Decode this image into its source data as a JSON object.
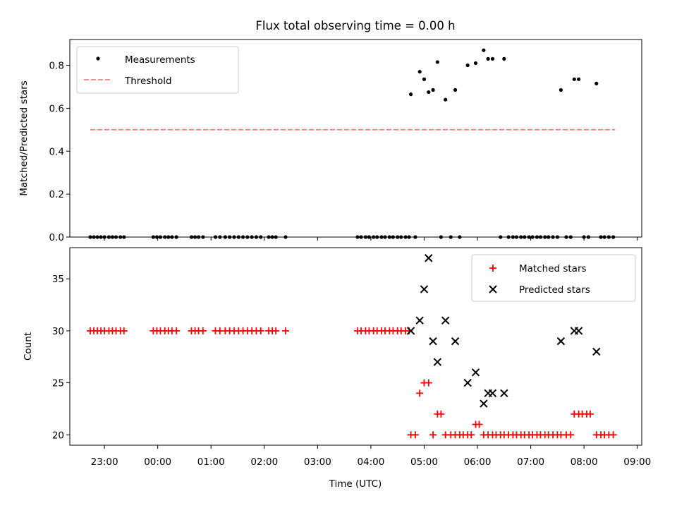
{
  "title": "Flux total observing time = 0.00 h",
  "colors": {
    "measurement": "#000000",
    "threshold": "#ff7f7f",
    "matched": "#ff0000",
    "predicted": "#000000"
  },
  "chart_data": [
    {
      "type": "scatter",
      "title": "Flux total observing time = 0.00 h",
      "xlabel": "",
      "ylabel": "Matched/Predicted stars",
      "xlim": [
        "22:21",
        "09:05"
      ],
      "ylim": [
        0,
        0.92
      ],
      "yticks": [
        "0.0",
        "0.2",
        "0.4",
        "0.6",
        "0.8"
      ],
      "grid": false,
      "legend": {
        "position": "upper left",
        "entries": [
          "Measurements",
          "Threshold"
        ]
      },
      "series": [
        {
          "name": "Measurements",
          "style": "dot",
          "points": [
            [
              "22:44",
              0
            ],
            [
              "22:48",
              0
            ],
            [
              "22:52",
              0
            ],
            [
              "22:56",
              0
            ],
            [
              "23:00",
              0
            ],
            [
              "23:05",
              0
            ],
            [
              "23:09",
              0
            ],
            [
              "23:13",
              0
            ],
            [
              "23:18",
              0
            ],
            [
              "23:22",
              0
            ],
            [
              "23:55",
              0
            ],
            [
              "23:59",
              0
            ],
            [
              "00:03",
              0
            ],
            [
              "00:08",
              0
            ],
            [
              "00:12",
              0
            ],
            [
              "00:16",
              0
            ],
            [
              "00:21",
              0
            ],
            [
              "00:38",
              0
            ],
            [
              "00:42",
              0
            ],
            [
              "00:46",
              0
            ],
            [
              "00:51",
              0
            ],
            [
              "01:05",
              0
            ],
            [
              "01:10",
              0
            ],
            [
              "01:16",
              0
            ],
            [
              "01:21",
              0
            ],
            [
              "01:26",
              0
            ],
            [
              "01:31",
              0
            ],
            [
              "01:36",
              0
            ],
            [
              "01:41",
              0
            ],
            [
              "01:46",
              0
            ],
            [
              "01:51",
              0
            ],
            [
              "01:56",
              0
            ],
            [
              "02:05",
              0
            ],
            [
              "02:09",
              0
            ],
            [
              "02:13",
              0
            ],
            [
              "02:24",
              0
            ],
            [
              "03:45",
              0
            ],
            [
              "03:49",
              0
            ],
            [
              "03:54",
              0
            ],
            [
              "03:58",
              0
            ],
            [
              "04:03",
              0
            ],
            [
              "04:07",
              0
            ],
            [
              "04:12",
              0
            ],
            [
              "04:16",
              0
            ],
            [
              "04:21",
              0
            ],
            [
              "04:25",
              0
            ],
            [
              "04:30",
              0
            ],
            [
              "04:34",
              0
            ],
            [
              "04:39",
              0
            ],
            [
              "04:43",
              0
            ],
            [
              "04:45",
              0.665
            ],
            [
              "04:50",
              0
            ],
            [
              "04:55",
              0.77
            ],
            [
              "05:00",
              0.735
            ],
            [
              "05:05",
              0.675
            ],
            [
              "05:10",
              0.685
            ],
            [
              "05:15",
              0.815
            ],
            [
              "05:19",
              0
            ],
            [
              "05:24",
              0.64
            ],
            [
              "05:30",
              0
            ],
            [
              "05:35",
              0.685
            ],
            [
              "05:40",
              0
            ],
            [
              "05:49",
              0.8
            ],
            [
              "05:58",
              0.81
            ],
            [
              "06:07",
              0.87
            ],
            [
              "06:12",
              0.83
            ],
            [
              "06:17",
              0.83
            ],
            [
              "06:26",
              0
            ],
            [
              "06:30",
              0.83
            ],
            [
              "06:35",
              0
            ],
            [
              "06:40",
              0
            ],
            [
              "06:44",
              0
            ],
            [
              "06:49",
              0
            ],
            [
              "06:53",
              0
            ],
            [
              "06:58",
              0
            ],
            [
              "07:02",
              0
            ],
            [
              "07:07",
              0
            ],
            [
              "07:11",
              0
            ],
            [
              "07:16",
              0
            ],
            [
              "07:20",
              0
            ],
            [
              "07:25",
              0
            ],
            [
              "07:30",
              0
            ],
            [
              "07:34",
              0.685
            ],
            [
              "07:40",
              0
            ],
            [
              "07:45",
              0
            ],
            [
              "07:49",
              0.735
            ],
            [
              "07:54",
              0.735
            ],
            [
              "08:00",
              0
            ],
            [
              "08:05",
              0
            ],
            [
              "08:14",
              0.715
            ],
            [
              "08:19",
              0
            ],
            [
              "08:23",
              0
            ],
            [
              "08:28",
              0
            ],
            [
              "08:33",
              0
            ]
          ]
        },
        {
          "name": "Threshold",
          "style": "dashed-line",
          "x": [
            "22:44",
            "08:35"
          ],
          "y": [
            0.5,
            0.5
          ]
        }
      ]
    },
    {
      "type": "scatter",
      "title": "",
      "xlabel": "Time (UTC)",
      "ylabel": "Count",
      "xlim": [
        "22:21",
        "09:05"
      ],
      "ylim": [
        19,
        38
      ],
      "yticks": [
        "20",
        "25",
        "30",
        "35"
      ],
      "xticks": [
        "23:00",
        "00:00",
        "01:00",
        "02:00",
        "03:00",
        "04:00",
        "05:00",
        "06:00",
        "07:00",
        "08:00",
        "09:00"
      ],
      "grid": false,
      "legend": {
        "position": "upper right",
        "entries": [
          "Matched stars",
          "Predicted stars"
        ]
      },
      "series": [
        {
          "name": "Matched stars",
          "marker": "plus",
          "points": [
            [
              "22:44",
              30
            ],
            [
              "22:48",
              30
            ],
            [
              "22:52",
              30
            ],
            [
              "22:56",
              30
            ],
            [
              "23:00",
              30
            ],
            [
              "23:05",
              30
            ],
            [
              "23:09",
              30
            ],
            [
              "23:13",
              30
            ],
            [
              "23:18",
              30
            ],
            [
              "23:22",
              30
            ],
            [
              "23:55",
              30
            ],
            [
              "23:59",
              30
            ],
            [
              "00:03",
              30
            ],
            [
              "00:08",
              30
            ],
            [
              "00:12",
              30
            ],
            [
              "00:16",
              30
            ],
            [
              "00:21",
              30
            ],
            [
              "00:38",
              30
            ],
            [
              "00:42",
              30
            ],
            [
              "00:46",
              30
            ],
            [
              "00:51",
              30
            ],
            [
              "01:05",
              30
            ],
            [
              "01:10",
              30
            ],
            [
              "01:16",
              30
            ],
            [
              "01:21",
              30
            ],
            [
              "01:26",
              30
            ],
            [
              "01:31",
              30
            ],
            [
              "01:36",
              30
            ],
            [
              "01:41",
              30
            ],
            [
              "01:46",
              30
            ],
            [
              "01:51",
              30
            ],
            [
              "01:56",
              30
            ],
            [
              "02:05",
              30
            ],
            [
              "02:09",
              30
            ],
            [
              "02:13",
              30
            ],
            [
              "02:24",
              30
            ],
            [
              "03:45",
              30
            ],
            [
              "03:49",
              30
            ],
            [
              "03:54",
              30
            ],
            [
              "03:58",
              30
            ],
            [
              "04:03",
              30
            ],
            [
              "04:07",
              30
            ],
            [
              "04:12",
              30
            ],
            [
              "04:16",
              30
            ],
            [
              "04:21",
              30
            ],
            [
              "04:25",
              30
            ],
            [
              "04:30",
              30
            ],
            [
              "04:34",
              30
            ],
            [
              "04:39",
              30
            ],
            [
              "04:43",
              30
            ],
            [
              "04:45",
              20
            ],
            [
              "04:50",
              20
            ],
            [
              "04:55",
              24
            ],
            [
              "05:00",
              25
            ],
            [
              "05:05",
              25
            ],
            [
              "05:10",
              20
            ],
            [
              "05:15",
              22
            ],
            [
              "05:19",
              22
            ],
            [
              "05:24",
              20
            ],
            [
              "05:30",
              20
            ],
            [
              "05:35",
              20
            ],
            [
              "05:40",
              20
            ],
            [
              "05:44",
              20
            ],
            [
              "05:49",
              20
            ],
            [
              "05:53",
              20
            ],
            [
              "05:58",
              21
            ],
            [
              "06:02",
              21
            ],
            [
              "06:07",
              20
            ],
            [
              "06:12",
              20
            ],
            [
              "06:17",
              20
            ],
            [
              "06:21",
              20
            ],
            [
              "06:26",
              20
            ],
            [
              "06:30",
              20
            ],
            [
              "06:35",
              20
            ],
            [
              "06:40",
              20
            ],
            [
              "06:44",
              20
            ],
            [
              "06:49",
              20
            ],
            [
              "06:53",
              20
            ],
            [
              "06:58",
              20
            ],
            [
              "07:02",
              20
            ],
            [
              "07:07",
              20
            ],
            [
              "07:11",
              20
            ],
            [
              "07:16",
              20
            ],
            [
              "07:20",
              20
            ],
            [
              "07:25",
              20
            ],
            [
              "07:30",
              20
            ],
            [
              "07:34",
              20
            ],
            [
              "07:40",
              20
            ],
            [
              "07:45",
              20
            ],
            [
              "07:49",
              22
            ],
            [
              "07:54",
              22
            ],
            [
              "07:58",
              22
            ],
            [
              "08:03",
              22
            ],
            [
              "08:07",
              22
            ],
            [
              "08:14",
              20
            ],
            [
              "08:19",
              20
            ],
            [
              "08:23",
              20
            ],
            [
              "08:28",
              20
            ],
            [
              "08:33",
              20
            ]
          ]
        },
        {
          "name": "Predicted stars",
          "marker": "x",
          "points": [
            [
              "04:45",
              30
            ],
            [
              "04:55",
              31
            ],
            [
              "05:00",
              34
            ],
            [
              "05:05",
              37
            ],
            [
              "05:10",
              29
            ],
            [
              "05:15",
              27
            ],
            [
              "05:24",
              31
            ],
            [
              "05:35",
              29
            ],
            [
              "05:49",
              25
            ],
            [
              "05:58",
              26
            ],
            [
              "06:07",
              23
            ],
            [
              "06:12",
              24
            ],
            [
              "06:17",
              24
            ],
            [
              "06:30",
              24
            ],
            [
              "07:34",
              29
            ],
            [
              "07:49",
              30
            ],
            [
              "07:54",
              30
            ],
            [
              "08:14",
              28
            ]
          ]
        }
      ]
    }
  ]
}
